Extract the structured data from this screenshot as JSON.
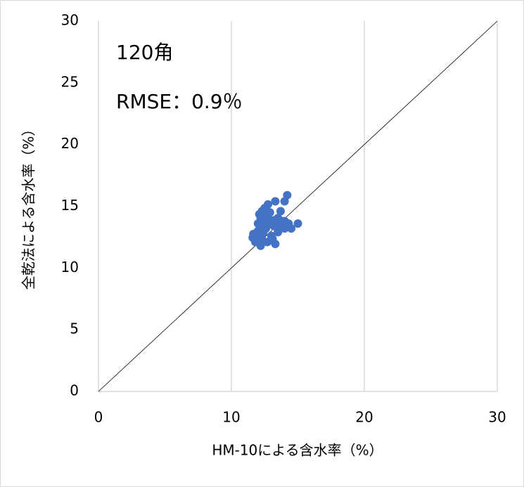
{
  "chart_data": {
    "type": "scatter",
    "xlabel": "HM-10による含水率（%）",
    "ylabel": "全乾法による含水率（%）",
    "annotations": [
      "120角",
      "RMSE：0.9％"
    ],
    "xlim": [
      0,
      30
    ],
    "ylim": [
      0,
      30
    ],
    "xticks": [
      0,
      10,
      20,
      30
    ],
    "yticks": [
      0,
      5,
      10,
      15,
      20,
      25,
      30
    ],
    "grid": "x",
    "diagonal": true,
    "series": [
      {
        "color": "#4472c4",
        "x": [
          14.2,
          14.0,
          12.75,
          13.3,
          11.6,
          11.65,
          12.2,
          13.3,
          15.0,
          14.5,
          14.3,
          13.7,
          13.5,
          12.3,
          12.5,
          12.9,
          12.2,
          12.0,
          12.0,
          12.4,
          13.0,
          13.5,
          14.0,
          12.7,
          13.2,
          13.8,
          12.3,
          11.8,
          12.7,
          13.1,
          12.4,
          12.8,
          12.2,
          12.6,
          13.0,
          13.3,
          13.6,
          14.0,
          12.1,
          12.45,
          11.85
        ],
        "y": [
          15.9,
          15.4,
          15.15,
          15.4,
          12.45,
          12.75,
          11.8,
          11.95,
          13.6,
          13.2,
          13.6,
          14.6,
          14.05,
          14.6,
          14.85,
          14.5,
          14.05,
          13.6,
          13.0,
          12.9,
          12.6,
          12.9,
          13.2,
          13.5,
          13.4,
          13.8,
          12.35,
          12.1,
          12.1,
          12.35,
          13.95,
          14.05,
          13.4,
          13.2,
          13.6,
          13.9,
          13.4,
          13.8,
          14.35,
          14.35,
          12.6
        ]
      }
    ]
  }
}
